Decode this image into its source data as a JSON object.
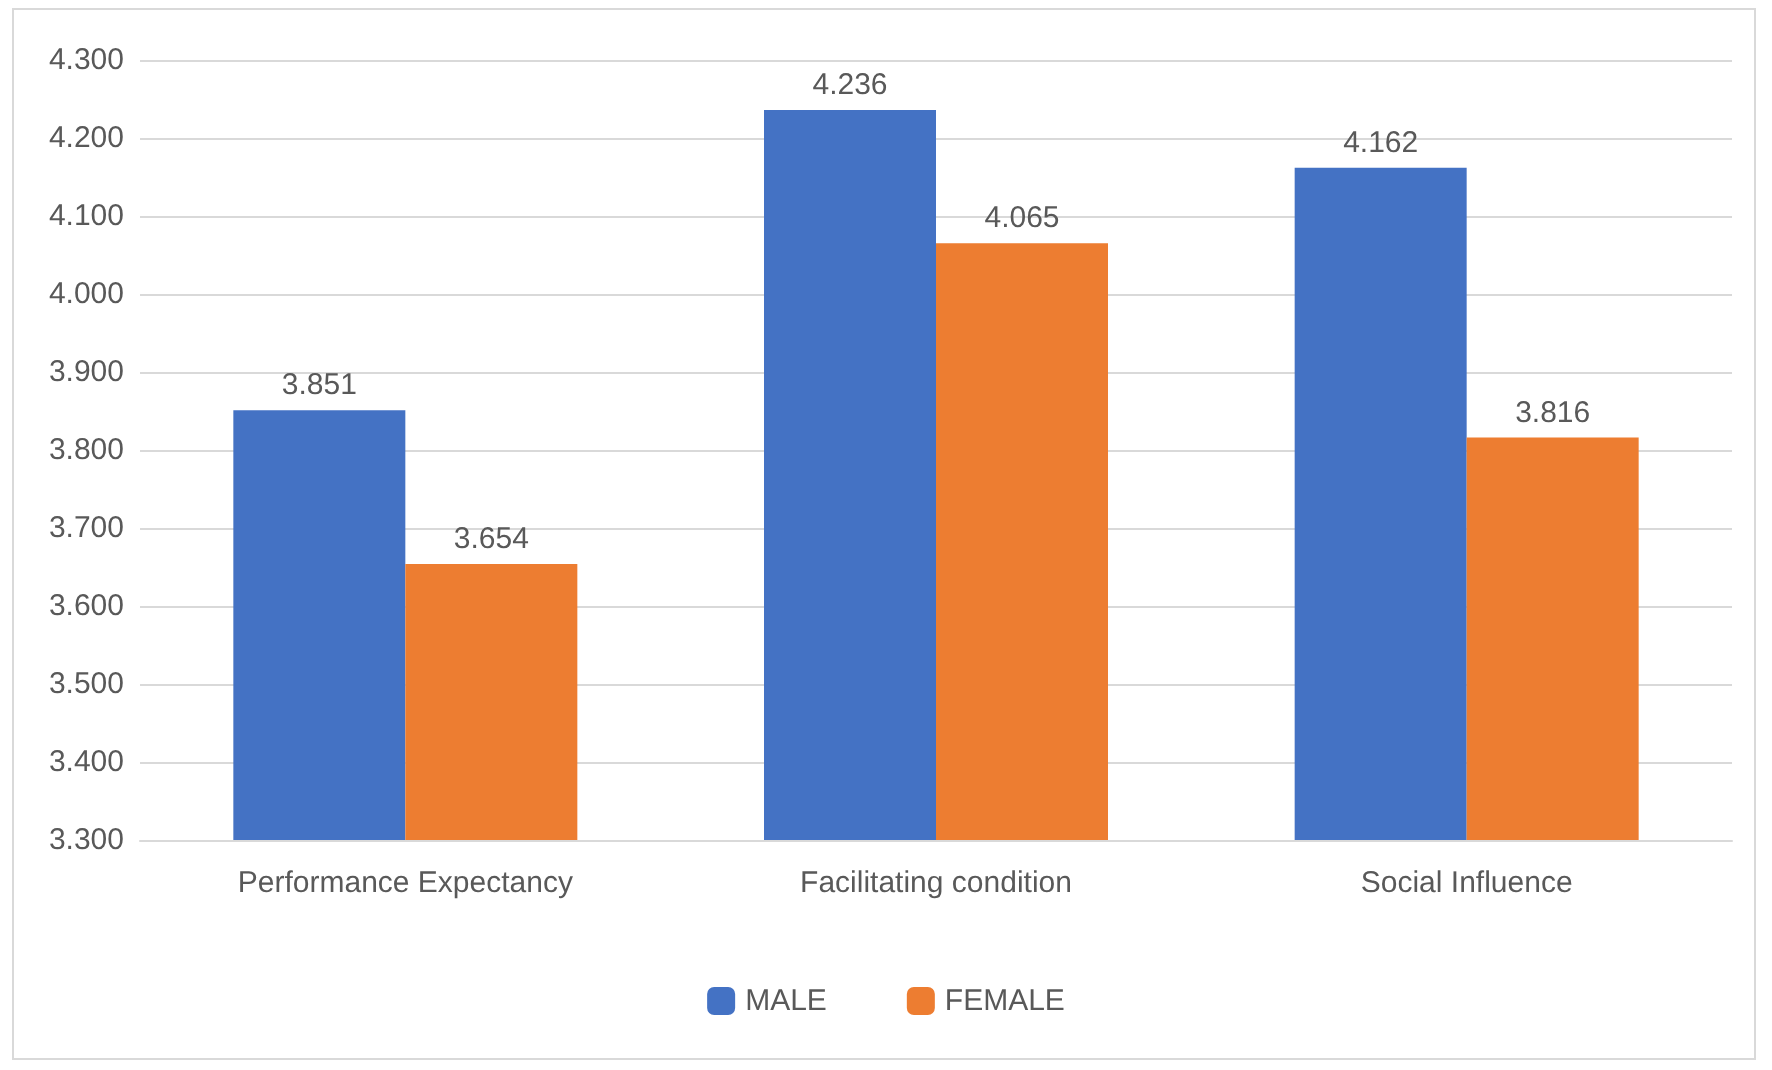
{
  "chart_data": {
    "type": "bar",
    "categories": [
      "Performance Expectancy",
      "Facilitating condition",
      "Social Influence"
    ],
    "series": [
      {
        "name": "MALE",
        "color": "#4472c4",
        "values": [
          3.851,
          4.236,
          4.162
        ]
      },
      {
        "name": "FEMALE",
        "color": "#ed7d31",
        "values": [
          3.654,
          4.065,
          3.816
        ]
      }
    ],
    "ylim": [
      3.3,
      4.3
    ],
    "yticks": [
      {
        "value": 3.3,
        "label": "3.300"
      },
      {
        "value": 3.4,
        "label": "3.400"
      },
      {
        "value": 3.5,
        "label": "3.500"
      },
      {
        "value": 3.6,
        "label": "3.600"
      },
      {
        "value": 3.7,
        "label": "3.700"
      },
      {
        "value": 3.8,
        "label": "3.800"
      },
      {
        "value": 3.9,
        "label": "3.900"
      },
      {
        "value": 4.0,
        "label": "4.000"
      },
      {
        "value": 4.1,
        "label": "4.100"
      },
      {
        "value": 4.2,
        "label": "4.200"
      },
      {
        "value": 4.3,
        "label": "4.300"
      }
    ],
    "grid": "y",
    "legend": "bottom",
    "data_labels": true
  }
}
